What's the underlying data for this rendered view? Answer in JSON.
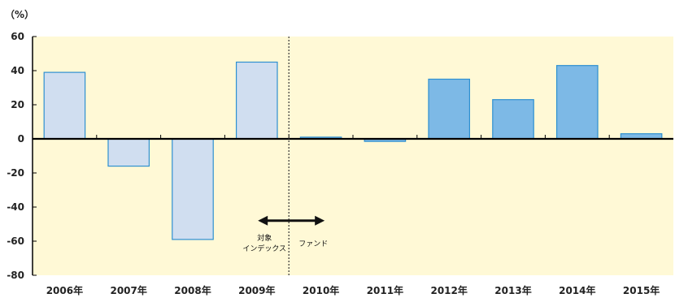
{
  "chart_data": {
    "type": "bar",
    "unit_label": "（%）",
    "categories": [
      "2006年",
      "2007年",
      "2008年",
      "2009年",
      "2010年",
      "2011年",
      "2012年",
      "2013年",
      "2014年",
      "2015年"
    ],
    "values": [
      39,
      -16,
      -59,
      45,
      1,
      -1.5,
      35,
      23,
      43,
      3
    ],
    "ylim": [
      -80,
      60
    ],
    "yticks": [
      "60",
      "40",
      "20",
      "0",
      "-20",
      "-40",
      "-60",
      "-80"
    ],
    "grid": false,
    "background_color": "#FFF9D6",
    "colors": {
      "index_bar": "#D0DEF0",
      "fund_bar": "#7DB9E6",
      "bar_border": "#2E90D0"
    },
    "annotations": {
      "left_label_line1": "対象",
      "left_label_line2": "インデックス",
      "right_label": "ファンド"
    }
  }
}
